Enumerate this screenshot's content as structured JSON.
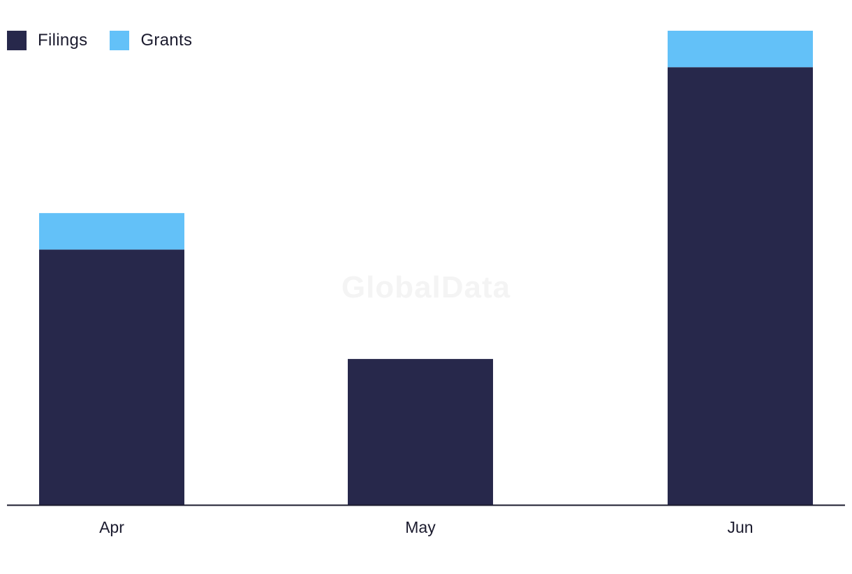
{
  "chart_data": {
    "type": "bar",
    "stacked": true,
    "categories": [
      "Apr",
      "May",
      "Jun"
    ],
    "series": [
      {
        "name": "Filings",
        "values": [
          7,
          4,
          12
        ],
        "color": "#27284b"
      },
      {
        "name": "Grants",
        "values": [
          1,
          0,
          1
        ],
        "color": "#63c1f8"
      }
    ],
    "title": "",
    "xlabel": "",
    "ylabel": "",
    "ylim": [
      0,
      13
    ],
    "grid": false,
    "legend_position": "top-left"
  },
  "watermark": "GlobalData"
}
